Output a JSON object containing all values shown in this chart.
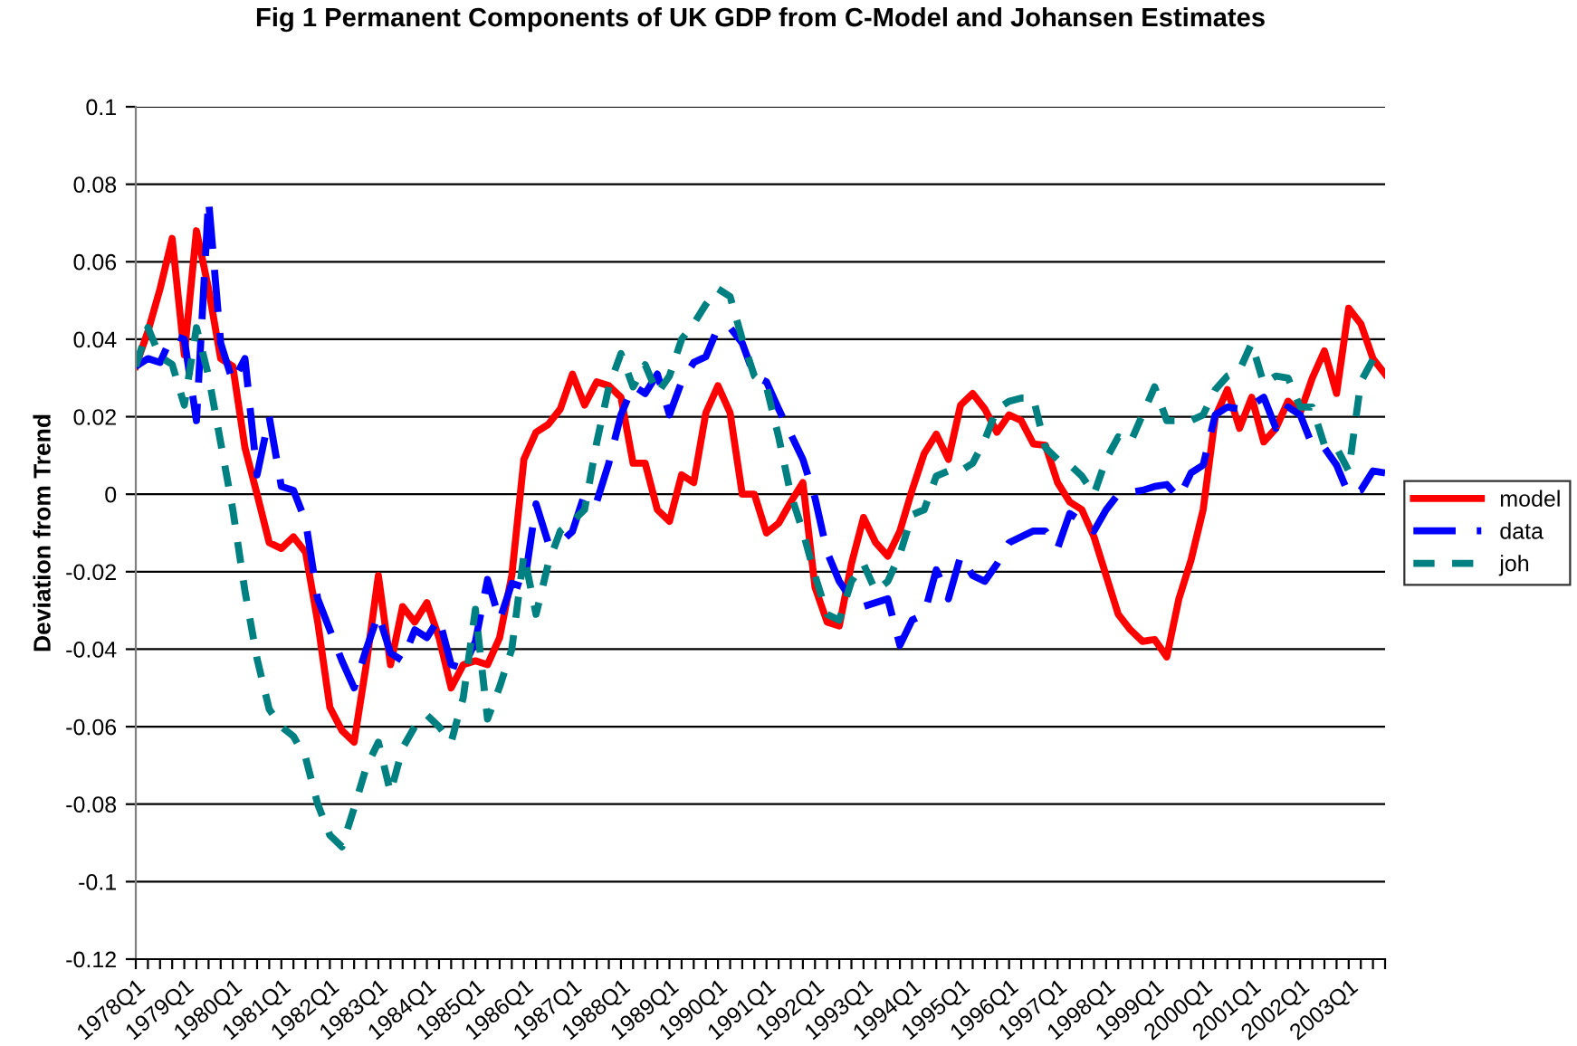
{
  "chart_data": {
    "type": "line",
    "title": "Fig 1 Permanent Components of UK GDP from C-Model and Johansen Estimates",
    "ylabel": "Deviation from Trend",
    "categories": [
      "1978Q1",
      null,
      null,
      null,
      "1979Q1",
      null,
      null,
      null,
      "1980Q1",
      null,
      null,
      null,
      "1981Q1",
      null,
      null,
      null,
      "1982Q1",
      null,
      null,
      null,
      "1983Q1",
      null,
      null,
      null,
      "1984Q1",
      null,
      null,
      null,
      "1985Q1",
      null,
      null,
      null,
      "1986Q1",
      null,
      null,
      null,
      "1987Q1",
      null,
      null,
      null,
      "1988Q1",
      null,
      null,
      null,
      "1989Q1",
      null,
      null,
      null,
      "1990Q1",
      null,
      null,
      null,
      "1991Q1",
      null,
      null,
      null,
      "1992Q1",
      null,
      null,
      null,
      "1993Q1",
      null,
      null,
      null,
      "1994Q1",
      null,
      null,
      null,
      "1995Q1",
      null,
      null,
      null,
      "1996Q1",
      null,
      null,
      null,
      "1997Q1",
      null,
      null,
      null,
      "1998Q1",
      null,
      null,
      null,
      "1999Q1",
      null,
      null,
      null,
      "2000Q1",
      null,
      null,
      null,
      "2001Q1",
      null,
      null,
      null,
      "2002Q1",
      null,
      null,
      null,
      "2003Q1",
      null,
      null,
      null
    ],
    "series": [
      {
        "name": "model",
        "color": "#ff0000",
        "line_style": "solid",
        "values": [
          0.033,
          0.042,
          0.053,
          0.066,
          0.036,
          0.068,
          0.053,
          0.035,
          0.033,
          0.012,
          0.0,
          -0.0125,
          -0.014,
          -0.011,
          -0.015,
          -0.033,
          -0.055,
          -0.061,
          -0.064,
          -0.044,
          -0.021,
          -0.044,
          -0.029,
          -0.033,
          -0.028,
          -0.037,
          -0.05,
          -0.044,
          -0.043,
          -0.044,
          -0.037,
          -0.021,
          0.009,
          0.016,
          0.018,
          0.022,
          0.031,
          0.023,
          0.029,
          0.028,
          0.025,
          0.008,
          0.008,
          -0.004,
          -0.007,
          0.005,
          0.003,
          0.021,
          0.028,
          0.021,
          0.0,
          0.0,
          -0.01,
          -0.0075,
          -0.002,
          0.003,
          -0.024,
          -0.033,
          -0.034,
          -0.018,
          -0.006,
          -0.0125,
          -0.016,
          -0.0095,
          0.001,
          0.0105,
          0.0155,
          0.009,
          0.023,
          0.026,
          0.022,
          0.016,
          0.0205,
          0.019,
          0.013,
          0.0126,
          0.003,
          -0.002,
          -0.004,
          -0.011,
          -0.021,
          -0.031,
          -0.035,
          -0.038,
          -0.0375,
          -0.042,
          -0.027,
          -0.017,
          -0.004,
          0.02,
          0.027,
          0.017,
          0.025,
          0.0135,
          0.017,
          0.024,
          0.021,
          0.03,
          0.037,
          0.026,
          0.048,
          0.044,
          0.035,
          0.031
        ]
      },
      {
        "name": "data",
        "color": "#0000ff",
        "line_style": "dashed",
        "values": [
          0.033,
          0.035,
          0.034,
          0.041,
          0.04,
          0.019,
          0.076,
          0.039,
          0.029,
          0.035,
          0.005,
          0.02,
          0.002,
          0.001,
          -0.007,
          -0.027,
          -0.035,
          -0.043,
          -0.05,
          -0.04,
          -0.031,
          -0.041,
          -0.043,
          -0.035,
          -0.037,
          -0.032,
          -0.044,
          -0.045,
          -0.038,
          -0.022,
          -0.0325,
          -0.023,
          -0.024,
          -0.0025,
          -0.0125,
          -0.0125,
          -0.0096,
          0.0,
          -0.002,
          0.008,
          0.0205,
          0.028,
          0.026,
          0.031,
          0.0205,
          0.029,
          0.034,
          0.0355,
          0.043,
          0.043,
          0.039,
          0.0305,
          0.029,
          0.022,
          0.0155,
          0.009,
          -0.001,
          -0.015,
          -0.0225,
          -0.027,
          -0.029,
          -0.028,
          -0.027,
          -0.039,
          -0.0325,
          -0.031,
          -0.0195,
          -0.027,
          -0.016,
          -0.021,
          -0.0225,
          -0.018,
          -0.0125,
          -0.011,
          -0.0095,
          -0.0095,
          -0.014,
          -0.005,
          -0.007,
          -0.0095,
          -0.004,
          0.0,
          0.0005,
          0.001,
          0.002,
          0.0025,
          -0.001,
          0.0055,
          0.0075,
          0.0205,
          0.0225,
          0.022,
          0.023,
          0.025,
          0.017,
          0.0225,
          0.0205,
          0.0126,
          0.012,
          0.0075,
          0.0,
          0.001,
          0.006,
          0.0055
        ]
      },
      {
        "name": "joh",
        "color": "#008080",
        "line_style": "dotted",
        "values": [
          0.033,
          0.043,
          0.0355,
          0.0335,
          0.023,
          0.043,
          0.0305,
          0.0133,
          -0.004,
          -0.025,
          -0.0425,
          -0.0555,
          -0.06,
          -0.0625,
          -0.068,
          -0.08,
          -0.088,
          -0.091,
          -0.081,
          -0.0705,
          -0.064,
          -0.077,
          -0.0655,
          -0.06,
          -0.057,
          -0.06,
          -0.064,
          -0.0525,
          -0.0297,
          -0.058,
          -0.0497,
          -0.04,
          -0.0155,
          -0.031,
          -0.018,
          -0.0095,
          -0.007,
          -0.004,
          0.0133,
          0.0277,
          0.0363,
          0.0277,
          0.0334,
          0.026,
          0.0305,
          0.04,
          0.044,
          0.049,
          0.053,
          0.051,
          0.04,
          0.0305,
          0.0277,
          0.0148,
          0.0,
          -0.0096,
          -0.021,
          -0.031,
          -0.0325,
          -0.0225,
          -0.018,
          -0.025,
          -0.0225,
          -0.0155,
          -0.0053,
          -0.004,
          0.0047,
          0.006,
          0.006,
          0.008,
          0.014,
          0.022,
          0.024,
          0.0248,
          0.0248,
          0.012,
          0.009,
          0.0076,
          0.0047,
          0.0,
          0.009,
          0.0148,
          0.0133,
          0.0205,
          0.0277,
          0.019,
          0.019,
          0.019,
          0.0205,
          0.027,
          0.0305,
          0.032,
          0.039,
          0.0285,
          0.0305,
          0.03,
          0.0225,
          0.0225,
          0.0126,
          0.012,
          0.006,
          0.029,
          0.0348,
          0.034
        ]
      }
    ],
    "ylim": [
      -0.12,
      0.1
    ],
    "yticks": [
      -0.12,
      -0.1,
      -0.08,
      -0.06,
      -0.04,
      -0.02,
      0,
      0.02,
      0.04,
      0.06,
      0.08,
      0.1
    ],
    "grid": "y",
    "legend": "right",
    "marker": "none"
  }
}
